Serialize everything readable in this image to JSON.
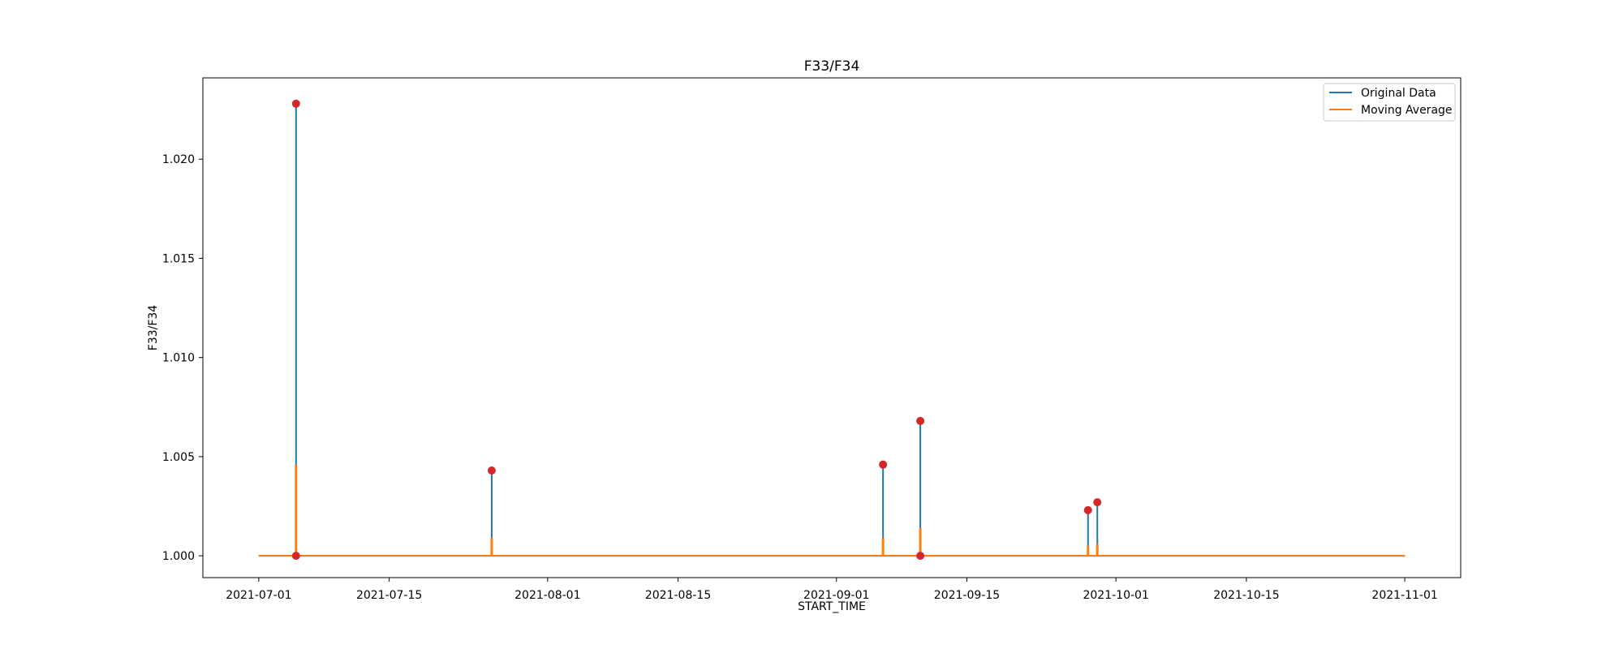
{
  "chart_data": {
    "type": "line",
    "title": "F33/F34",
    "xlabel": "START_TIME",
    "ylabel": "F33/F34",
    "x_ticks": [
      "2021-07-01",
      "2021-07-15",
      "2021-08-01",
      "2021-08-15",
      "2021-09-01",
      "2021-09-15",
      "2021-10-01",
      "2021-10-15",
      "2021-11-01"
    ],
    "y_ticks": [
      "1.000",
      "1.005",
      "1.010",
      "1.015",
      "1.020"
    ],
    "xlim": [
      "2020-06-25",
      "2021-11-07"
    ],
    "ylim": [
      0.9989,
      1.0241
    ],
    "grid": false,
    "legend_position": "top-right",
    "baseline": 1.0,
    "x_range": [
      "2021-07-01",
      "2021-11-01"
    ],
    "series": [
      {
        "name": "Original Data",
        "color": "#1f77b4",
        "spikes": [
          {
            "x": "2021-07-05",
            "y": 1.0228
          },
          {
            "x": "2021-07-26",
            "y": 1.0043
          },
          {
            "x": "2021-09-06",
            "y": 1.0046
          },
          {
            "x": "2021-09-10",
            "y": 1.0068
          },
          {
            "x": "2021-09-28",
            "y": 1.0023
          },
          {
            "x": "2021-09-29",
            "y": 1.0027
          }
        ]
      },
      {
        "name": "Moving Average",
        "color": "#ff7f0e",
        "spikes": [
          {
            "x": "2021-07-05",
            "y": 1.0046
          },
          {
            "x": "2021-07-26",
            "y": 1.0009
          },
          {
            "x": "2021-09-06",
            "y": 1.0009
          },
          {
            "x": "2021-09-10",
            "y": 1.0014
          },
          {
            "x": "2021-09-28",
            "y": 1.0005
          },
          {
            "x": "2021-09-29",
            "y": 1.0006
          }
        ]
      }
    ],
    "anomaly_points": {
      "color": "#d62728",
      "points": [
        {
          "x": "2021-07-05",
          "y": 1.0228
        },
        {
          "x": "2021-07-05",
          "y": 1.0
        },
        {
          "x": "2021-07-26",
          "y": 1.0043
        },
        {
          "x": "2021-09-06",
          "y": 1.0046
        },
        {
          "x": "2021-09-10",
          "y": 1.0068
        },
        {
          "x": "2021-09-10",
          "y": 1.0
        },
        {
          "x": "2021-09-28",
          "y": 1.0023
        },
        {
          "x": "2021-09-29",
          "y": 1.0027
        }
      ]
    }
  }
}
